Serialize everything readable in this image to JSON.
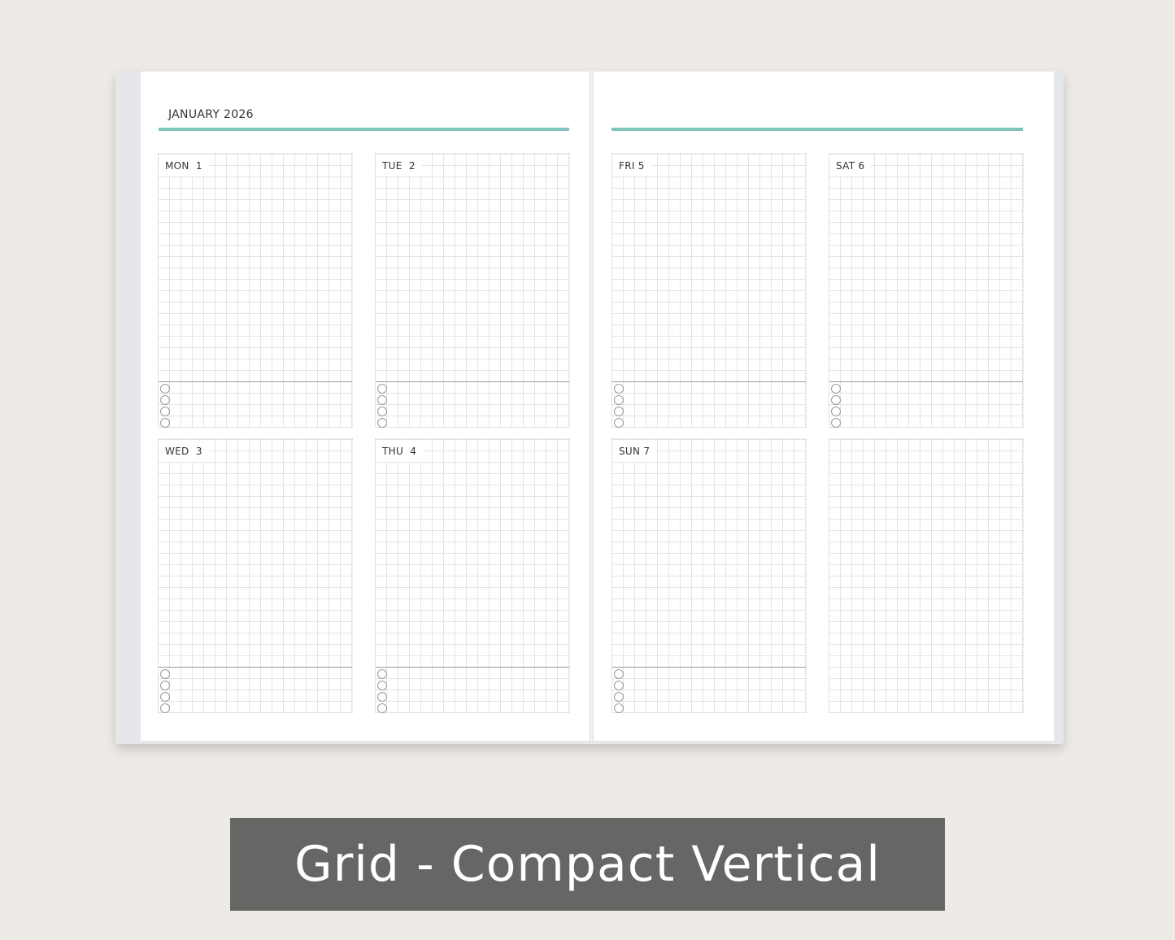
{
  "header": {
    "month": "JANUARY 2026"
  },
  "accent_color": "#7fc4bd",
  "days": [
    {
      "label": "MON  1"
    },
    {
      "label": "TUE  2"
    },
    {
      "label": "WED  3"
    },
    {
      "label": "THU  4"
    },
    {
      "label": "FRI 5"
    },
    {
      "label": "SAT 6"
    },
    {
      "label": "SUN 7"
    },
    {
      "label": ""
    }
  ],
  "banner": {
    "title": "Grid - Compact Vertical"
  }
}
